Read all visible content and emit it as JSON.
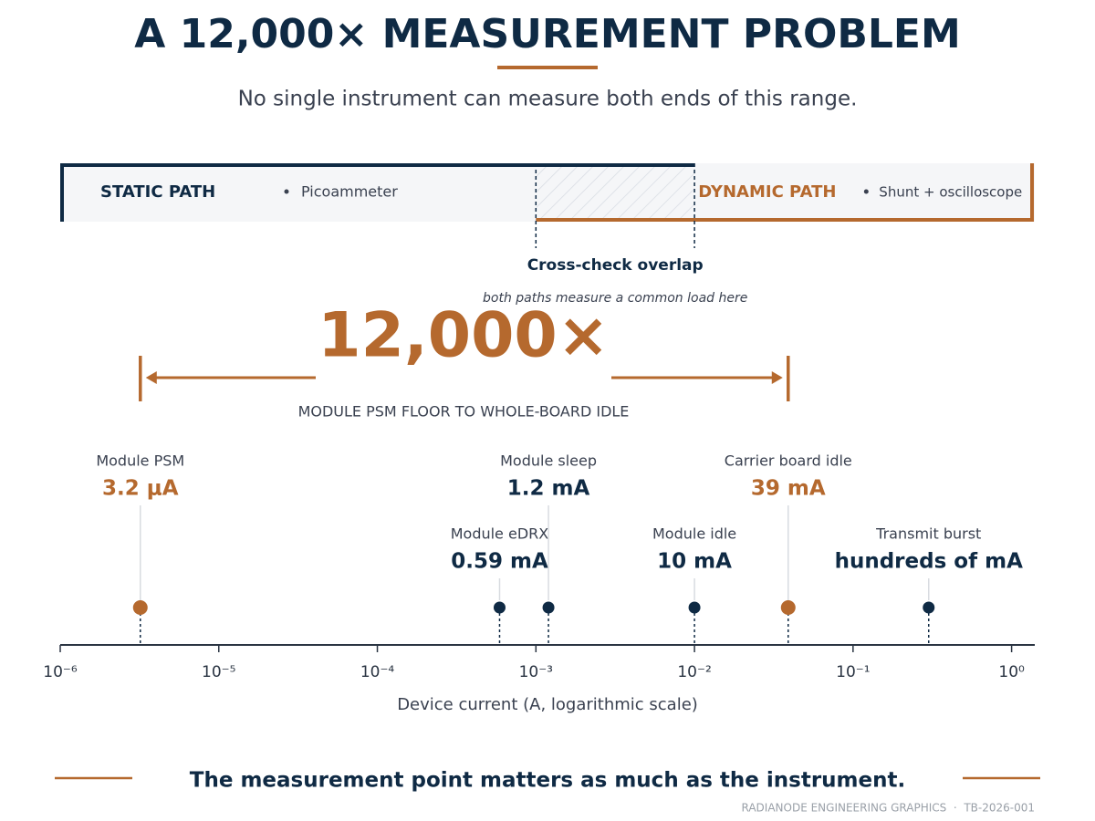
{
  "chart_data": {
    "type": "scatter",
    "title": "A 12,000× MEASUREMENT PROBLEM",
    "subtitle": "No single instrument can measure both ends of this range.",
    "x_label": "Device current (A, logarithmic scale)",
    "log_x": true,
    "xlim": [
      1e-06,
      1.4
    ],
    "xticks": [
      {
        "value": 1e-06,
        "label": "10⁻⁶"
      },
      {
        "value": 1e-05,
        "label": "10⁻⁵"
      },
      {
        "value": 0.0001,
        "label": "10⁻⁴"
      },
      {
        "value": 0.001,
        "label": "10⁻³"
      },
      {
        "value": 0.01,
        "label": "10⁻²"
      },
      {
        "value": 0.1,
        "label": "10⁻¹"
      },
      {
        "value": 1,
        "label": "10⁰"
      }
    ],
    "categories": [
      "Module PSM",
      "Module eDRX",
      "Module sleep",
      "Module idle",
      "Carrier board idle",
      "Transmit burst"
    ],
    "values": [
      3.2e-06,
      0.00059,
      0.0012,
      0.01,
      0.039,
      0.3
    ],
    "value_labels": [
      "3.2 μA",
      "0.59 mA",
      "1.2 mA",
      "10 mA",
      "39 mA",
      "hundreds of mA"
    ],
    "colors": [
      "#b5692e",
      "#0f2a44",
      "#0f2a44",
      "#0f2a44",
      "#b5692e",
      "#0f2a44"
    ],
    "paths": [
      {
        "name": "STATIC PATH",
        "instrument": "Picoammeter",
        "from": 1e-06,
        "to": 0.01,
        "color": "#0f2a44"
      },
      {
        "name": "DYNAMIC PATH",
        "instrument": "Shunt + oscilloscope",
        "from": 0.001,
        "to": 1.4,
        "color": "#b5692e"
      }
    ],
    "overlap": {
      "title": "Cross-check overlap",
      "note": "both paths measure a common load here"
    },
    "range": {
      "label": "12,000×",
      "caption": "MODULE PSM FLOOR TO WHOLE-BOARD IDLE",
      "from": 3.2e-06,
      "to": 0.039
    },
    "tagline": "The measurement point matters as much as the instrument.",
    "credit": "RADIANODE ENGINEERING GRAPHICS  ·  TB-2026-001"
  }
}
